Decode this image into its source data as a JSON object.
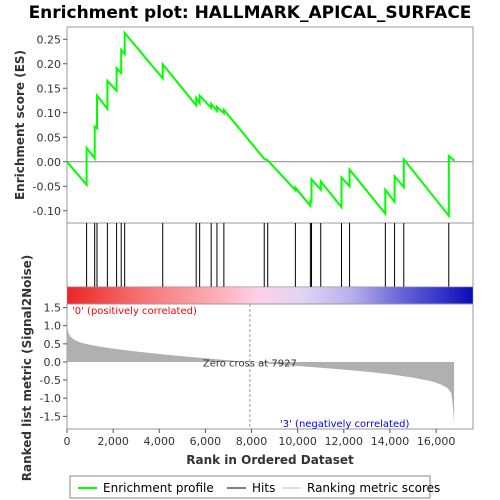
{
  "chart_data": {
    "type": "line",
    "title": "Enrichment plot: HALLMARK_APICAL_SURFACE",
    "es_panel": {
      "ylabel": "Enrichment score (ES)",
      "ylim": [
        -0.125,
        0.275
      ],
      "yticks": [
        -0.1,
        -0.05,
        0.0,
        0.05,
        0.1,
        0.15,
        0.2,
        0.25
      ],
      "ytick_labels": [
        "-0.10",
        "-0.05",
        "0.00",
        "0.05",
        "0.10",
        "0.15",
        "0.20",
        "0.25"
      ],
      "series": [
        {
          "name": "Enrichment profile",
          "color": "#00ff00",
          "x": [
            0,
            850,
            850,
            1200,
            1200,
            1300,
            1300,
            1750,
            1750,
            2150,
            2150,
            2350,
            2350,
            2500,
            2500,
            4150,
            4150,
            5600,
            5600,
            5750,
            5750,
            6250,
            6250,
            6500,
            6500,
            6800,
            6800,
            8550,
            8550,
            8700,
            8700,
            9900,
            9900,
            10550,
            10550,
            10600,
            10600,
            11000,
            11000,
            11900,
            11900,
            12250,
            12250,
            13800,
            13800,
            14200,
            14200,
            14600,
            14600,
            16550,
            16550,
            16800
          ],
          "y": [
            0.0,
            -0.047,
            0.028,
            0.007,
            0.072,
            0.068,
            0.135,
            0.108,
            0.165,
            0.145,
            0.191,
            0.181,
            0.228,
            0.22,
            0.263,
            0.17,
            0.199,
            0.115,
            0.13,
            0.12,
            0.135,
            0.11,
            0.118,
            0.104,
            0.112,
            0.099,
            0.106,
            0.006,
            0.006,
            0.003,
            0.003,
            -0.058,
            -0.053,
            -0.09,
            -0.078,
            -0.083,
            -0.036,
            -0.057,
            -0.04,
            -0.093,
            -0.032,
            -0.05,
            -0.016,
            -0.106,
            -0.057,
            -0.082,
            -0.03,
            -0.052,
            0.005,
            -0.11,
            0.012,
            0.002
          ]
        }
      ]
    },
    "hits_panel": {
      "name": "Hits",
      "color": "#000000",
      "positions": [
        850,
        1200,
        1300,
        1750,
        2150,
        2350,
        2500,
        4150,
        5600,
        5750,
        6250,
        6500,
        6800,
        8550,
        8700,
        9900,
        10550,
        10600,
        11000,
        11900,
        12250,
        13800,
        14200,
        14600,
        16550
      ]
    },
    "ranked_panel": {
      "name": "Ranking metric scores",
      "ylabel": "Ranked list metric (Signal2Noise)",
      "xlabel": "Rank in Ordered Dataset",
      "ylim": [
        -1.85,
        1.6
      ],
      "yticks": [
        -1.5,
        -1.0,
        -0.5,
        0.0,
        0.5,
        1.0,
        1.5
      ],
      "ytick_labels": [
        "-1.5",
        "-1.0",
        "-0.5",
        "0.0",
        "0.5",
        "1.0",
        "1.5"
      ],
      "xlim": [
        0,
        17600
      ],
      "xticks": [
        0,
        2000,
        4000,
        6000,
        8000,
        10000,
        12000,
        14000,
        16000
      ],
      "xtick_labels": [
        "0",
        "2,000",
        "4,000",
        "6,000",
        "8,000",
        "10,000",
        "12,000",
        "14,000",
        "16,000"
      ],
      "profile": {
        "x": [
          0,
          20,
          60,
          150,
          300,
          500,
          800,
          1200,
          2000,
          3000,
          4000,
          5000,
          6000,
          7000,
          7927,
          9000,
          10000,
          11000,
          12000,
          13000,
          14000,
          15000,
          15800,
          16200,
          16500,
          16650,
          16700,
          16750,
          16780
        ],
        "y": [
          1.2,
          0.95,
          0.8,
          0.7,
          0.62,
          0.56,
          0.5,
          0.45,
          0.37,
          0.29,
          0.22,
          0.16,
          0.1,
          0.05,
          0.0,
          -0.06,
          -0.11,
          -0.16,
          -0.21,
          -0.27,
          -0.34,
          -0.43,
          -0.53,
          -0.62,
          -0.72,
          -0.85,
          -1.05,
          -1.4,
          -1.75
        ]
      },
      "color": "#b0b0b0",
      "zero_cross_label": "Zero cross at 7927",
      "zero_cross": 7927,
      "pos_label": "'0' (positively correlated)",
      "neg_label": "'3' (negatively correlated)",
      "pos_color": "#ff0000",
      "neg_color": "#0000ff"
    },
    "legend": {
      "placement": "bottom",
      "items": [
        {
          "label": "Enrichment profile",
          "color": "#00ff00"
        },
        {
          "label": "Hits",
          "color": "#000000"
        },
        {
          "label": "Ranking metric scores",
          "color": "#c0c0c0"
        }
      ]
    }
  }
}
